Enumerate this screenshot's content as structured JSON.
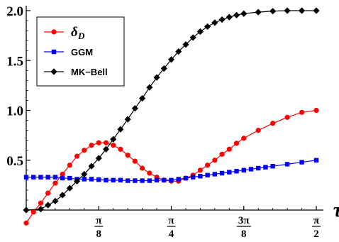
{
  "chart_data": {
    "type": "line",
    "x_variable": "τ",
    "xlim": [
      0,
      1.5708
    ],
    "ylim": [
      0,
      2.0
    ],
    "x_ticks": [
      {
        "value": 0.3927,
        "num": "π",
        "den": "8"
      },
      {
        "value": 0.7854,
        "num": "π",
        "den": "4"
      },
      {
        "value": 1.1781,
        "num": "3π",
        "den": "8"
      },
      {
        "value": 1.5708,
        "num": "π",
        "den": "2"
      }
    ],
    "y_ticks": [
      {
        "value": 0.5,
        "label": "0.5"
      },
      {
        "value": 1.0,
        "label": "1.0"
      },
      {
        "value": 1.5,
        "label": "1.5"
      },
      {
        "value": 2.0,
        "label": "2.0"
      }
    ],
    "legend_position": "top-left",
    "series": [
      {
        "name": "δ",
        "name_subscript": "D",
        "color": "#ff0000",
        "marker": "circle",
        "points": [
          [
            0.0,
            -0.13
          ],
          [
            0.0393,
            -0.02
          ],
          [
            0.0785,
            0.07
          ],
          [
            0.1178,
            0.17
          ],
          [
            0.1571,
            0.27
          ],
          [
            0.1963,
            0.36
          ],
          [
            0.2356,
            0.45
          ],
          [
            0.2749,
            0.54
          ],
          [
            0.3142,
            0.6
          ],
          [
            0.3534,
            0.65
          ],
          [
            0.3927,
            0.675
          ],
          [
            0.432,
            0.675
          ],
          [
            0.4712,
            0.65
          ],
          [
            0.5105,
            0.61
          ],
          [
            0.5498,
            0.55
          ],
          [
            0.589,
            0.49
          ],
          [
            0.6283,
            0.42
          ],
          [
            0.6676,
            0.37
          ],
          [
            0.7069,
            0.33
          ],
          [
            0.7461,
            0.3
          ],
          [
            0.7854,
            0.29
          ],
          [
            0.8247,
            0.29
          ],
          [
            0.8639,
            0.32
          ],
          [
            0.9032,
            0.35
          ],
          [
            0.9425,
            0.4
          ],
          [
            0.9817,
            0.45
          ],
          [
            1.021,
            0.5
          ],
          [
            1.0603,
            0.56
          ],
          [
            1.0996,
            0.61
          ],
          [
            1.1388,
            0.67
          ],
          [
            1.1781,
            0.72
          ],
          [
            1.2566,
            0.8
          ],
          [
            1.3352,
            0.87
          ],
          [
            1.4137,
            0.93
          ],
          [
            1.4923,
            0.98
          ],
          [
            1.5708,
            1.0
          ]
        ]
      },
      {
        "name": "GGM",
        "color": "#0000ff",
        "marker": "square",
        "points": [
          [
            0.0,
            0.33
          ],
          [
            0.0393,
            0.33
          ],
          [
            0.0785,
            0.33
          ],
          [
            0.1178,
            0.33
          ],
          [
            0.1571,
            0.33
          ],
          [
            0.1963,
            0.32
          ],
          [
            0.2356,
            0.32
          ],
          [
            0.2749,
            0.31
          ],
          [
            0.3142,
            0.31
          ],
          [
            0.3534,
            0.31
          ],
          [
            0.3927,
            0.305
          ],
          [
            0.432,
            0.3
          ],
          [
            0.4712,
            0.3
          ],
          [
            0.5105,
            0.3
          ],
          [
            0.5498,
            0.295
          ],
          [
            0.589,
            0.295
          ],
          [
            0.6283,
            0.295
          ],
          [
            0.6676,
            0.295
          ],
          [
            0.7069,
            0.3
          ],
          [
            0.7461,
            0.3
          ],
          [
            0.7854,
            0.3
          ],
          [
            0.8247,
            0.31
          ],
          [
            0.8639,
            0.32
          ],
          [
            0.9032,
            0.33
          ],
          [
            0.9425,
            0.34
          ],
          [
            0.9817,
            0.35
          ],
          [
            1.021,
            0.36
          ],
          [
            1.0603,
            0.37
          ],
          [
            1.0996,
            0.38
          ],
          [
            1.1388,
            0.39
          ],
          [
            1.1781,
            0.4
          ],
          [
            1.2173,
            0.41
          ],
          [
            1.2566,
            0.42
          ],
          [
            1.2959,
            0.43
          ],
          [
            1.3352,
            0.44
          ],
          [
            1.4137,
            0.46
          ],
          [
            1.4923,
            0.48
          ],
          [
            1.5708,
            0.5
          ]
        ]
      },
      {
        "name": "MK−Bell",
        "color": "#000000",
        "marker": "diamond",
        "points": [
          [
            0.0,
            0.0
          ],
          [
            0.0785,
            0.01
          ],
          [
            0.1178,
            0.05
          ],
          [
            0.1571,
            0.09
          ],
          [
            0.1963,
            0.15
          ],
          [
            0.2356,
            0.22
          ],
          [
            0.2749,
            0.29
          ],
          [
            0.3142,
            0.36
          ],
          [
            0.3534,
            0.44
          ],
          [
            0.3927,
            0.52
          ],
          [
            0.432,
            0.61
          ],
          [
            0.4712,
            0.71
          ],
          [
            0.5105,
            0.81
          ],
          [
            0.5498,
            0.91
          ],
          [
            0.589,
            1.02
          ],
          [
            0.6283,
            1.12
          ],
          [
            0.6676,
            1.23
          ],
          [
            0.7069,
            1.33
          ],
          [
            0.7461,
            1.42
          ],
          [
            0.7854,
            1.51
          ],
          [
            0.8247,
            1.59
          ],
          [
            0.8639,
            1.66
          ],
          [
            0.9032,
            1.73
          ],
          [
            0.9425,
            1.79
          ],
          [
            0.9817,
            1.84
          ],
          [
            1.021,
            1.88
          ],
          [
            1.0603,
            1.91
          ],
          [
            1.0996,
            1.935
          ],
          [
            1.1388,
            1.955
          ],
          [
            1.1781,
            1.97
          ],
          [
            1.2566,
            1.985
          ],
          [
            1.3352,
            1.995
          ],
          [
            1.4137,
            2.0
          ],
          [
            1.4923,
            2.0
          ],
          [
            1.5708,
            2.0
          ]
        ]
      }
    ]
  }
}
